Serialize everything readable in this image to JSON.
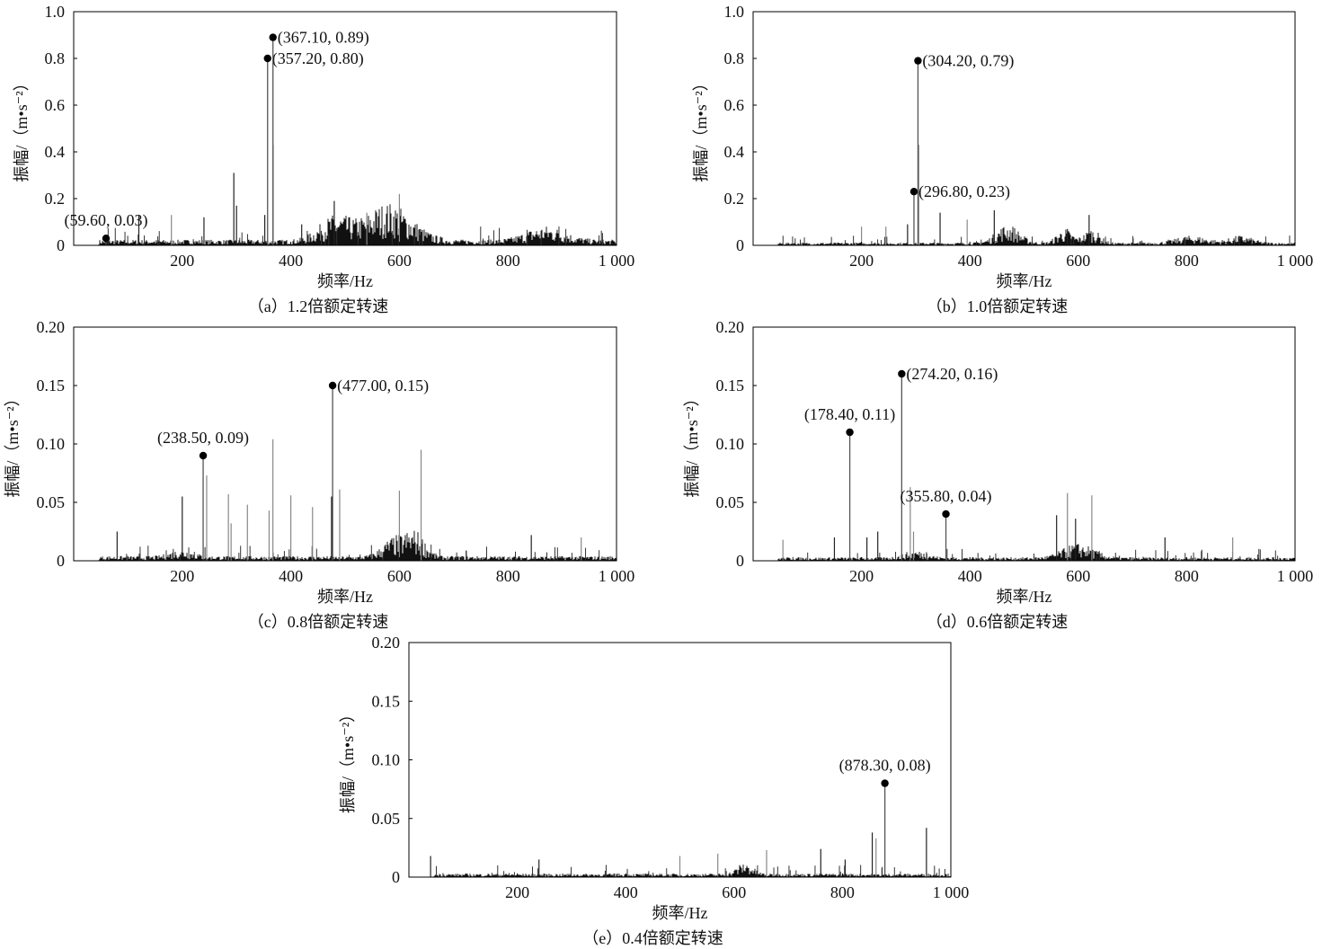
{
  "colors": {
    "axis": "#000000",
    "spectrum": "#111111",
    "marker": "#000000"
  },
  "chart_data": [
    {
      "type": "line",
      "id": "a",
      "caption": "（a）1.2倍额定转速",
      "xlabel": "频率/Hz",
      "ylabel": "振幅/（m•s⁻²）",
      "xlim": [
        0,
        1000
      ],
      "ylim": [
        0,
        1.0
      ],
      "xticks": [
        200,
        400,
        600,
        800,
        1000
      ],
      "xtick_labels": [
        "200",
        "400",
        "600",
        "800",
        "1 000"
      ],
      "yticks": [
        0,
        0.2,
        0.4,
        0.6,
        0.8,
        1.0
      ],
      "ytick_labels": [
        "0",
        "0.2",
        "0.4",
        "0.6",
        "0.8",
        "1.0"
      ],
      "noise": {
        "base": 0.012,
        "bumps": [
          [
            480,
            0.05,
            40
          ],
          [
            580,
            0.08,
            60
          ],
          [
            870,
            0.03,
            50
          ]
        ]
      },
      "peaks": [
        [
          120,
          0.13
        ],
        [
          180,
          0.13
        ],
        [
          240,
          0.12
        ],
        [
          295,
          0.31
        ],
        [
          300,
          0.17
        ],
        [
          352,
          0.13
        ],
        [
          367.5,
          0.43
        ],
        [
          480,
          0.19
        ],
        [
          540,
          0.14
        ],
        [
          600,
          0.22
        ],
        [
          420,
          0.09
        ]
      ],
      "annotations": [
        {
          "x": 59.6,
          "y": 0.03,
          "label": "(59.60, 0.03)",
          "position": "above"
        },
        {
          "x": 357.2,
          "y": 0.8,
          "label": "(357.20, 0.80)",
          "position": "right"
        },
        {
          "x": 367.1,
          "y": 0.89,
          "label": "(367.10, 0.89)",
          "position": "right"
        }
      ]
    },
    {
      "type": "line",
      "id": "b",
      "caption": "（b）1.0倍额定转速",
      "xlabel": "频率/Hz",
      "ylabel": "振幅/（m•s⁻²）",
      "xlim": [
        0,
        1000
      ],
      "ylim": [
        0,
        1.0
      ],
      "xticks": [
        200,
        400,
        600,
        800,
        1000
      ],
      "xtick_labels": [
        "200",
        "400",
        "600",
        "800",
        "1 000"
      ],
      "yticks": [
        0,
        0.2,
        0.4,
        0.6,
        0.8,
        1.0
      ],
      "ytick_labels": [
        "0",
        "0.2",
        "0.4",
        "0.6",
        "0.8",
        "1.0"
      ],
      "noise": {
        "base": 0.006,
        "bumps": [
          [
            470,
            0.04,
            30
          ],
          [
            575,
            0.03,
            20
          ],
          [
            625,
            0.03,
            20
          ],
          [
            810,
            0.015,
            40
          ],
          [
            900,
            0.015,
            30
          ]
        ]
      },
      "peaks": [
        [
          200,
          0.08
        ],
        [
          245,
          0.08
        ],
        [
          285,
          0.09
        ],
        [
          305,
          0.43
        ],
        [
          345,
          0.14
        ],
        [
          395,
          0.11
        ],
        [
          445,
          0.15
        ],
        [
          620,
          0.13
        ],
        [
          580,
          0.07
        ]
      ],
      "annotations": [
        {
          "x": 296.8,
          "y": 0.23,
          "label": "(296.80, 0.23)",
          "position": "right"
        },
        {
          "x": 304.2,
          "y": 0.79,
          "label": "(304.20, 0.79)",
          "position": "right"
        }
      ]
    },
    {
      "type": "line",
      "id": "c",
      "caption": "（c）0.8倍额定转速",
      "xlabel": "频率/Hz",
      "ylabel": "振幅/（m•s⁻²）",
      "xlim": [
        0,
        1000
      ],
      "ylim": [
        0,
        0.2
      ],
      "xticks": [
        200,
        400,
        600,
        800,
        1000
      ],
      "xtick_labels": [
        "200",
        "400",
        "600",
        "800",
        "1 000"
      ],
      "yticks": [
        0,
        0.05,
        0.1,
        0.15,
        0.2
      ],
      "ytick_labels": [
        "0",
        "0.05",
        "0.10",
        "0.15",
        "0.20"
      ],
      "noise": {
        "base": 0.002,
        "bumps": [
          [
            590,
            0.008,
            30
          ],
          [
            630,
            0.01,
            25
          ],
          [
            200,
            0.003,
            30
          ]
        ]
      },
      "peaks": [
        [
          80,
          0.025
        ],
        [
          200,
          0.055
        ],
        [
          245,
          0.073
        ],
        [
          285,
          0.057
        ],
        [
          290,
          0.032
        ],
        [
          320,
          0.048
        ],
        [
          360,
          0.043
        ],
        [
          367,
          0.104
        ],
        [
          400,
          0.056
        ],
        [
          440,
          0.046
        ],
        [
          475,
          0.055
        ],
        [
          490,
          0.061
        ],
        [
          600,
          0.06
        ],
        [
          640,
          0.095
        ],
        [
          935,
          0.02
        ],
        [
          843,
          0.022
        ]
      ],
      "annotations": [
        {
          "x": 238.5,
          "y": 0.09,
          "label": "(238.50, 0.09)",
          "position": "above"
        },
        {
          "x": 477.0,
          "y": 0.15,
          "label": "(477.00, 0.15)",
          "position": "right"
        }
      ]
    },
    {
      "type": "line",
      "id": "d",
      "caption": "（d）0.6倍额定转速",
      "xlabel": "频率/Hz",
      "ylabel": "振幅/（m•s⁻²）",
      "xlim": [
        0,
        1000
      ],
      "ylim": [
        0,
        0.2
      ],
      "xticks": [
        200,
        400,
        600,
        800,
        1000
      ],
      "xtick_labels": [
        "200",
        "400",
        "600",
        "800",
        "1 000"
      ],
      "yticks": [
        0,
        0.05,
        0.1,
        0.15,
        0.2
      ],
      "ytick_labels": [
        "0",
        "0.05",
        "0.10",
        "0.15",
        "0.20"
      ],
      "noise": {
        "base": 0.0015,
        "bumps": [
          [
            600,
            0.006,
            40
          ],
          [
            300,
            0.003,
            30
          ]
        ]
      },
      "peaks": [
        [
          55,
          0.018
        ],
        [
          150,
          0.02
        ],
        [
          210,
          0.02
        ],
        [
          230,
          0.025
        ],
        [
          290,
          0.063
        ],
        [
          296,
          0.025
        ],
        [
          560,
          0.039
        ],
        [
          580,
          0.058
        ],
        [
          595,
          0.036
        ],
        [
          625,
          0.056
        ],
        [
          760,
          0.02
        ],
        [
          885,
          0.02
        ]
      ],
      "annotations": [
        {
          "x": 178.4,
          "y": 0.11,
          "label": "(178.40, 0.11)",
          "position": "above"
        },
        {
          "x": 274.2,
          "y": 0.16,
          "label": "(274.20, 0.16)",
          "position": "right"
        },
        {
          "x": 355.8,
          "y": 0.04,
          "label": "(355.80, 0.04)",
          "position": "above"
        }
      ]
    },
    {
      "type": "line",
      "id": "e",
      "caption": "（e）0.4倍额定转速",
      "xlabel": "频率/Hz",
      "ylabel": "振幅/（m•s⁻²）",
      "xlim": [
        0,
        1000
      ],
      "ylim": [
        0,
        0.2
      ],
      "xticks": [
        200,
        400,
        600,
        800,
        1000
      ],
      "xtick_labels": [
        "200",
        "400",
        "600",
        "800",
        "1 000"
      ],
      "yticks": [
        0,
        0.05,
        0.1,
        0.15,
        0.2
      ],
      "ytick_labels": [
        "0",
        "0.05",
        "0.10",
        "0.15",
        "0.20"
      ],
      "noise": {
        "base": 0.0015,
        "bumps": [
          [
            620,
            0.005,
            20
          ]
        ]
      },
      "peaks": [
        [
          40,
          0.018
        ],
        [
          240,
          0.015
        ],
        [
          500,
          0.018
        ],
        [
          570,
          0.02
        ],
        [
          660,
          0.023
        ],
        [
          760,
          0.024
        ],
        [
          805,
          0.015
        ],
        [
          855,
          0.038
        ],
        [
          862,
          0.033
        ],
        [
          955,
          0.042
        ]
      ],
      "annotations": [
        {
          "x": 878.3,
          "y": 0.08,
          "label": "(878.30, 0.08)",
          "position": "above"
        }
      ]
    }
  ]
}
